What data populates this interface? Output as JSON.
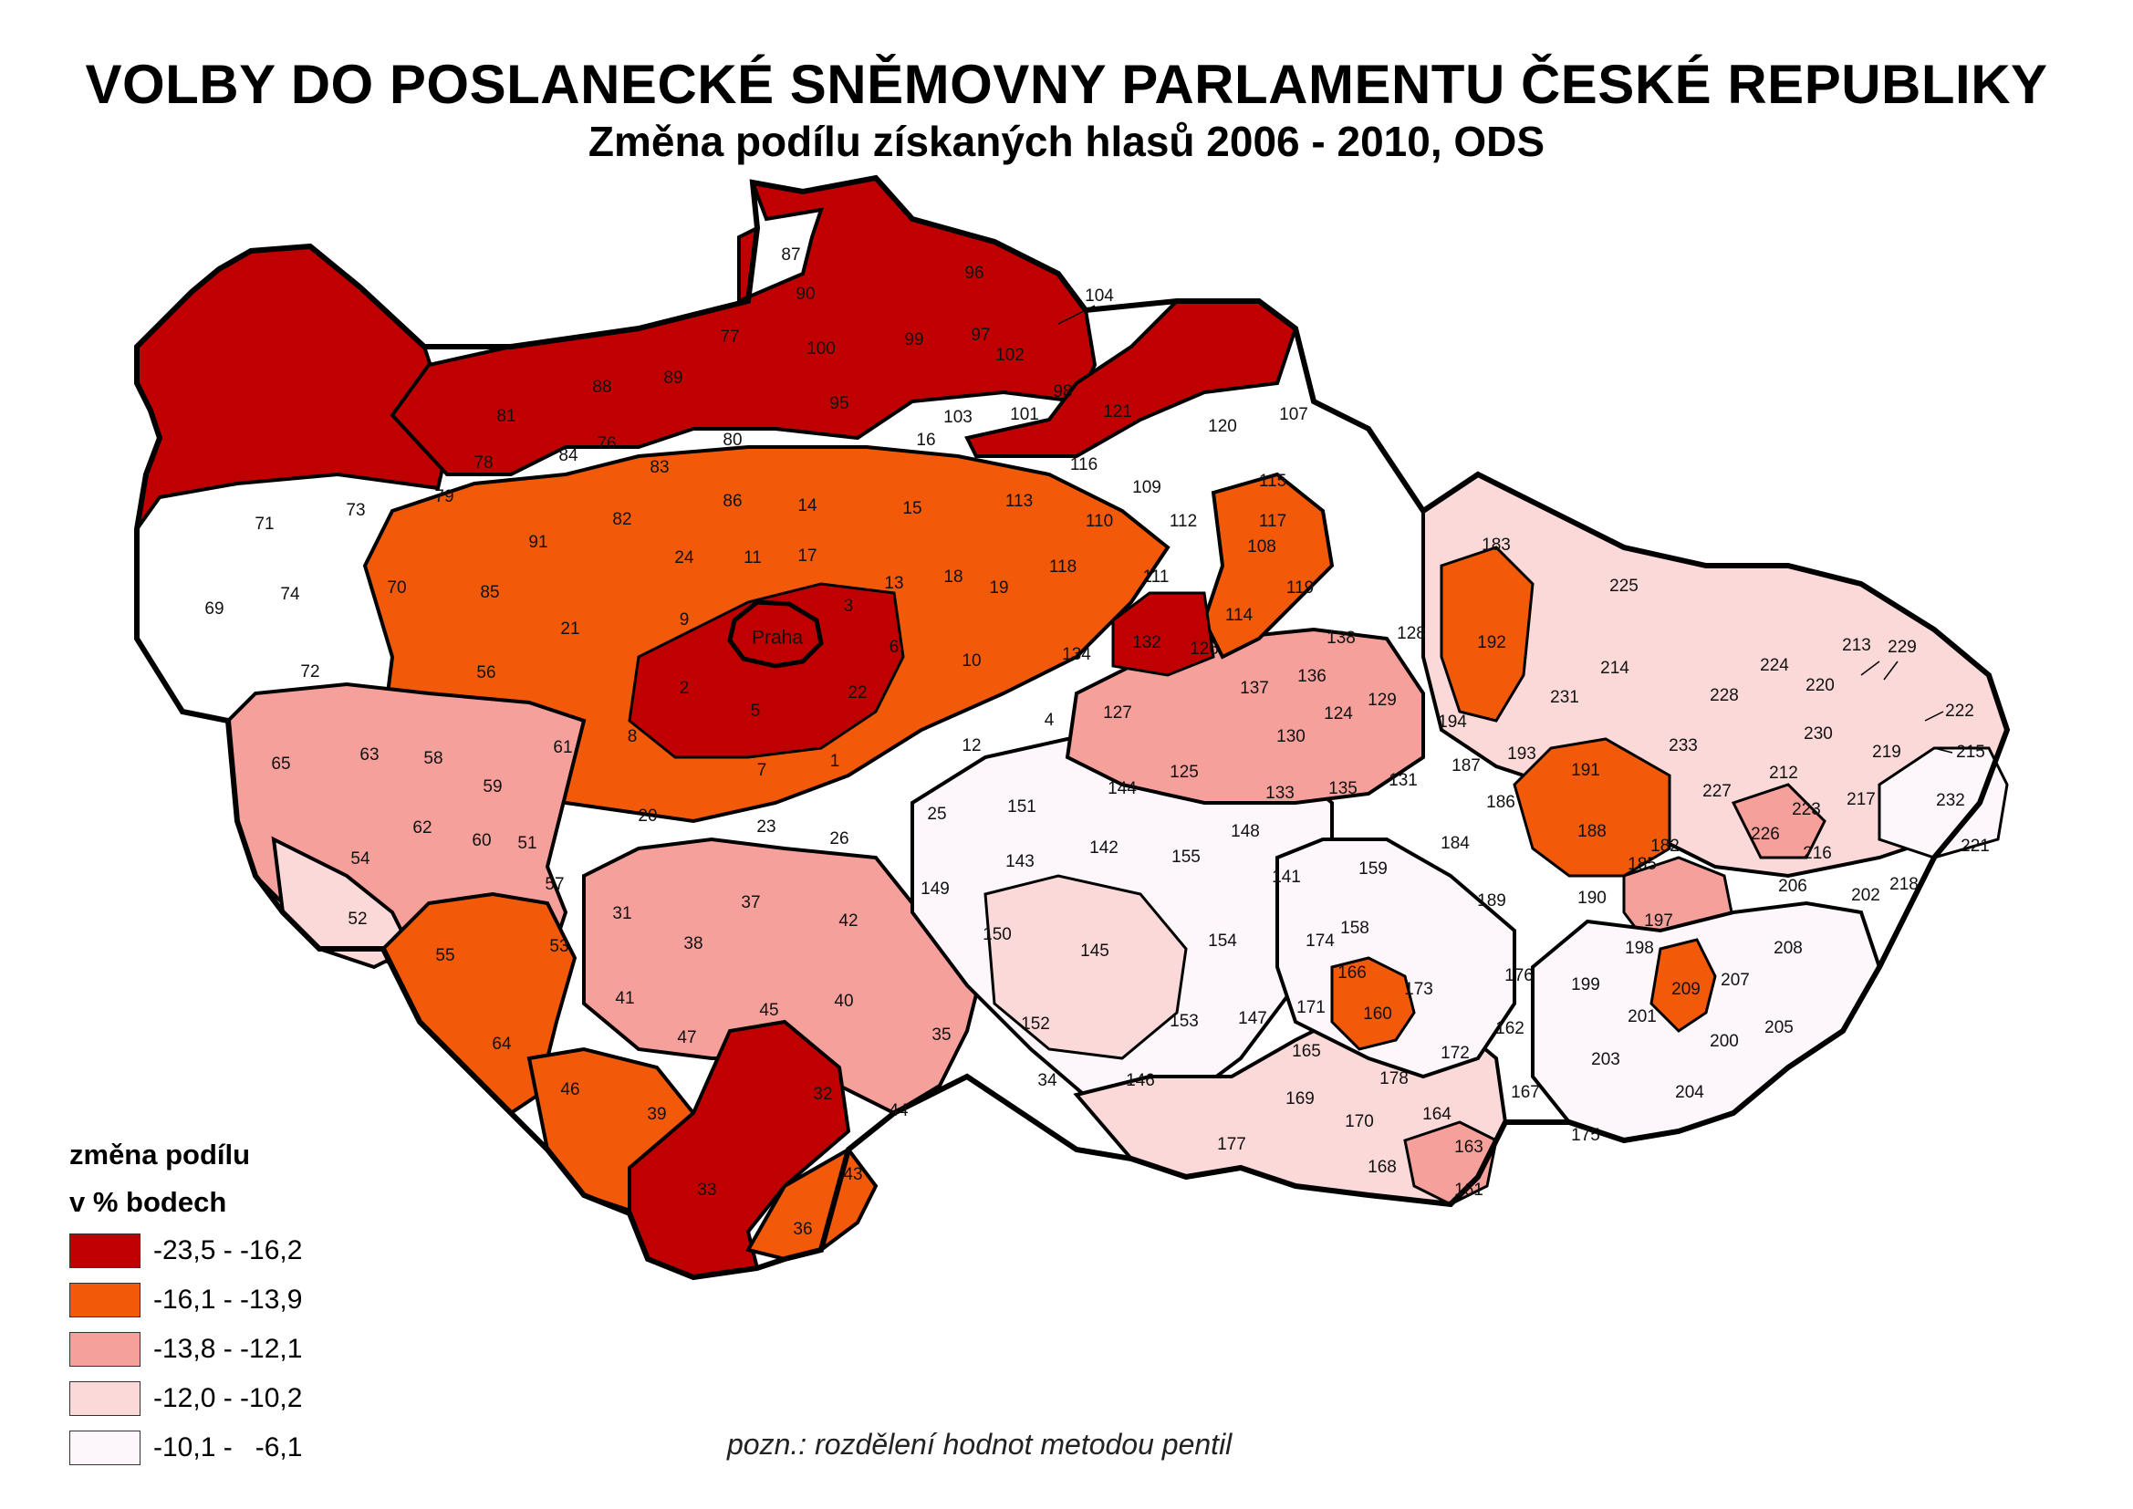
{
  "title": "VOLBY DO POSLANECKÉ SNĚMOVNY PARLAMENTU ČESKÉ REPUBLIKY",
  "subtitle": "Změna podílu získaných hlasů 2006 - 2010, ODS",
  "legend": {
    "title_line1": "změna podílu",
    "title_line2": "v % bodech",
    "classes": [
      {
        "range": "-23,5 - -16,2",
        "color": "#c00000"
      },
      {
        "range": "-16,1 - -13,9",
        "color": "#f25a0a"
      },
      {
        "range": "-13,8 - -12,1",
        "color": "#f6a09c"
      },
      {
        "range": "-12,0 - -10,2",
        "color": "#fbd9d9"
      },
      {
        "range": "-10,1 -   -6,1",
        "color": "#fdf7fb"
      }
    ]
  },
  "note": "pozn.: rozdělení hodnot metodou pentil",
  "capital_label": "Praha",
  "district_labels": [
    "1",
    "2",
    "3",
    "4",
    "5",
    "6",
    "7",
    "8",
    "9",
    "10",
    "11",
    "12",
    "13",
    "14",
    "15",
    "16",
    "17",
    "18",
    "19",
    "20",
    "21",
    "22",
    "23",
    "24",
    "25",
    "26",
    "31",
    "32",
    "33",
    "34",
    "35",
    "36",
    "37",
    "38",
    "39",
    "40",
    "41",
    "42",
    "43",
    "44",
    "45",
    "46",
    "47",
    "51",
    "52",
    "53",
    "54",
    "55",
    "56",
    "57",
    "58",
    "59",
    "60",
    "61",
    "62",
    "63",
    "64",
    "65",
    "69",
    "70",
    "71",
    "72",
    "73",
    "74",
    "76",
    "77",
    "78",
    "79",
    "80",
    "81",
    "82",
    "83",
    "84",
    "85",
    "86",
    "87",
    "88",
    "89",
    "90",
    "91",
    "95",
    "96",
    "97",
    "98",
    "99",
    "100",
    "101",
    "102",
    "103",
    "104",
    "107",
    "108",
    "109",
    "110",
    "111",
    "112",
    "113",
    "114",
    "115",
    "116",
    "117",
    "118",
    "119",
    "120",
    "121",
    "124",
    "125",
    "126",
    "127",
    "128",
    "129",
    "130",
    "131",
    "132",
    "133",
    "134",
    "135",
    "136",
    "137",
    "138",
    "141",
    "142",
    "143",
    "144",
    "145",
    "146",
    "147",
    "148",
    "149",
    "150",
    "151",
    "152",
    "153",
    "154",
    "155",
    "158",
    "159",
    "160",
    "161",
    "162",
    "163",
    "164",
    "165",
    "166",
    "167",
    "168",
    "169",
    "170",
    "171",
    "172",
    "173",
    "174",
    "175",
    "176",
    "177",
    "178",
    "182",
    "183",
    "184",
    "185",
    "186",
    "187",
    "188",
    "189",
    "190",
    "191",
    "192",
    "193",
    "194",
    "197",
    "198",
    "199",
    "200",
    "201",
    "202",
    "203",
    "204",
    "205",
    "206",
    "207",
    "208",
    "209",
    "212",
    "213",
    "214",
    "215",
    "216",
    "217",
    "218",
    "219",
    "220",
    "221",
    "222",
    "223",
    "224",
    "225",
    "226",
    "227",
    "228",
    "229",
    "230",
    "231",
    "232",
    "233"
  ]
}
